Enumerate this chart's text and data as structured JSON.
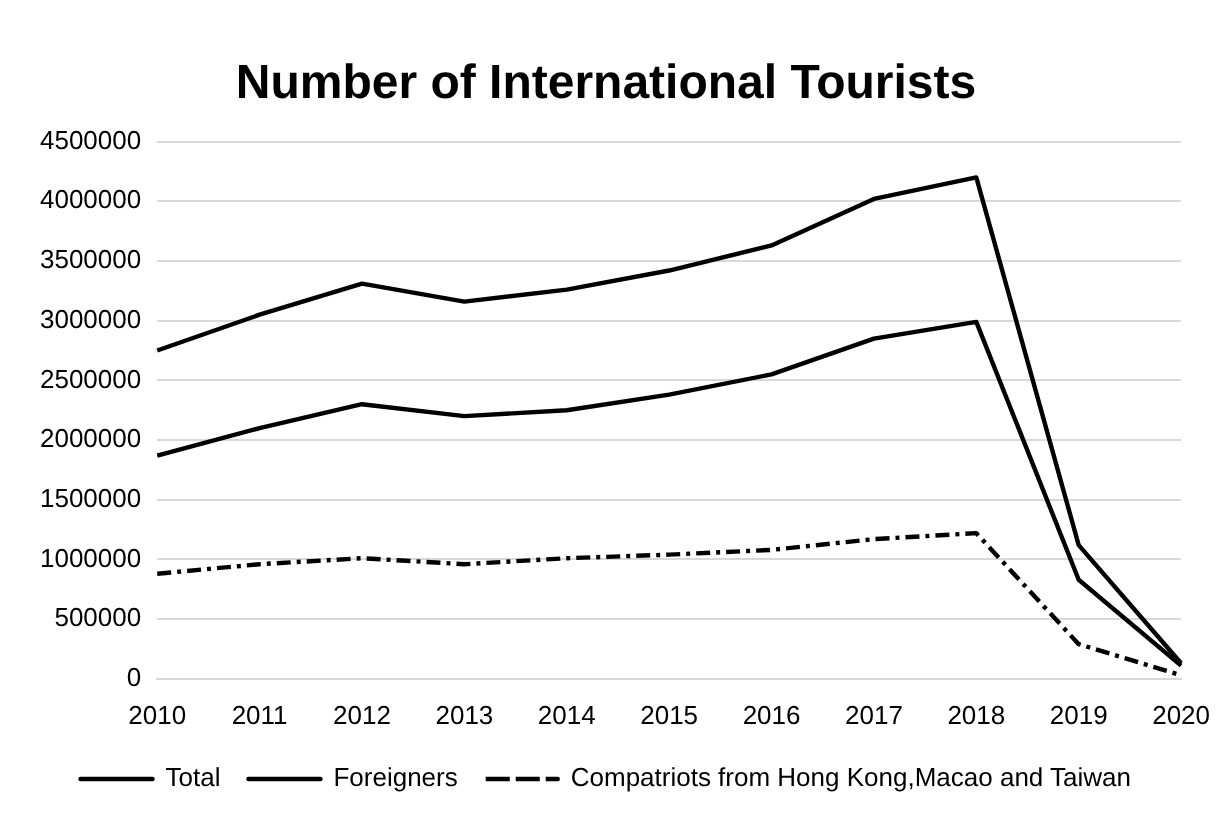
{
  "chart_data": {
    "type": "line",
    "title": "Number of International Tourists",
    "categories": [
      "2010",
      "2011",
      "2012",
      "2013",
      "2014",
      "2015",
      "2016",
      "2017",
      "2018",
      "2019",
      "2020"
    ],
    "series": [
      {
        "name": "Total",
        "color": "#000000",
        "line_style": "solid",
        "values": [
          2750000,
          3050000,
          3310000,
          3160000,
          3260000,
          3420000,
          3630000,
          4020000,
          4200000,
          1120000,
          130000
        ]
      },
      {
        "name": "Foreigners",
        "color": "#000000",
        "line_style": "solid",
        "values": [
          1870000,
          2100000,
          2300000,
          2200000,
          2250000,
          2380000,
          2550000,
          2850000,
          2990000,
          830000,
          110000
        ]
      },
      {
        "name": "Compatriots from Hong Kong,Macao and Taiwan",
        "color": "#000000",
        "line_style": "dashed",
        "values": [
          880000,
          960000,
          1010000,
          960000,
          1010000,
          1040000,
          1080000,
          1170000,
          1220000,
          290000,
          30000
        ]
      }
    ],
    "ylim": [
      0,
      4500000
    ],
    "yticks": [
      0,
      500000,
      1000000,
      1500000,
      2000000,
      2500000,
      3000000,
      3500000,
      4000000,
      4500000
    ],
    "grid": "y",
    "legend": "bottom",
    "marker": "none"
  }
}
